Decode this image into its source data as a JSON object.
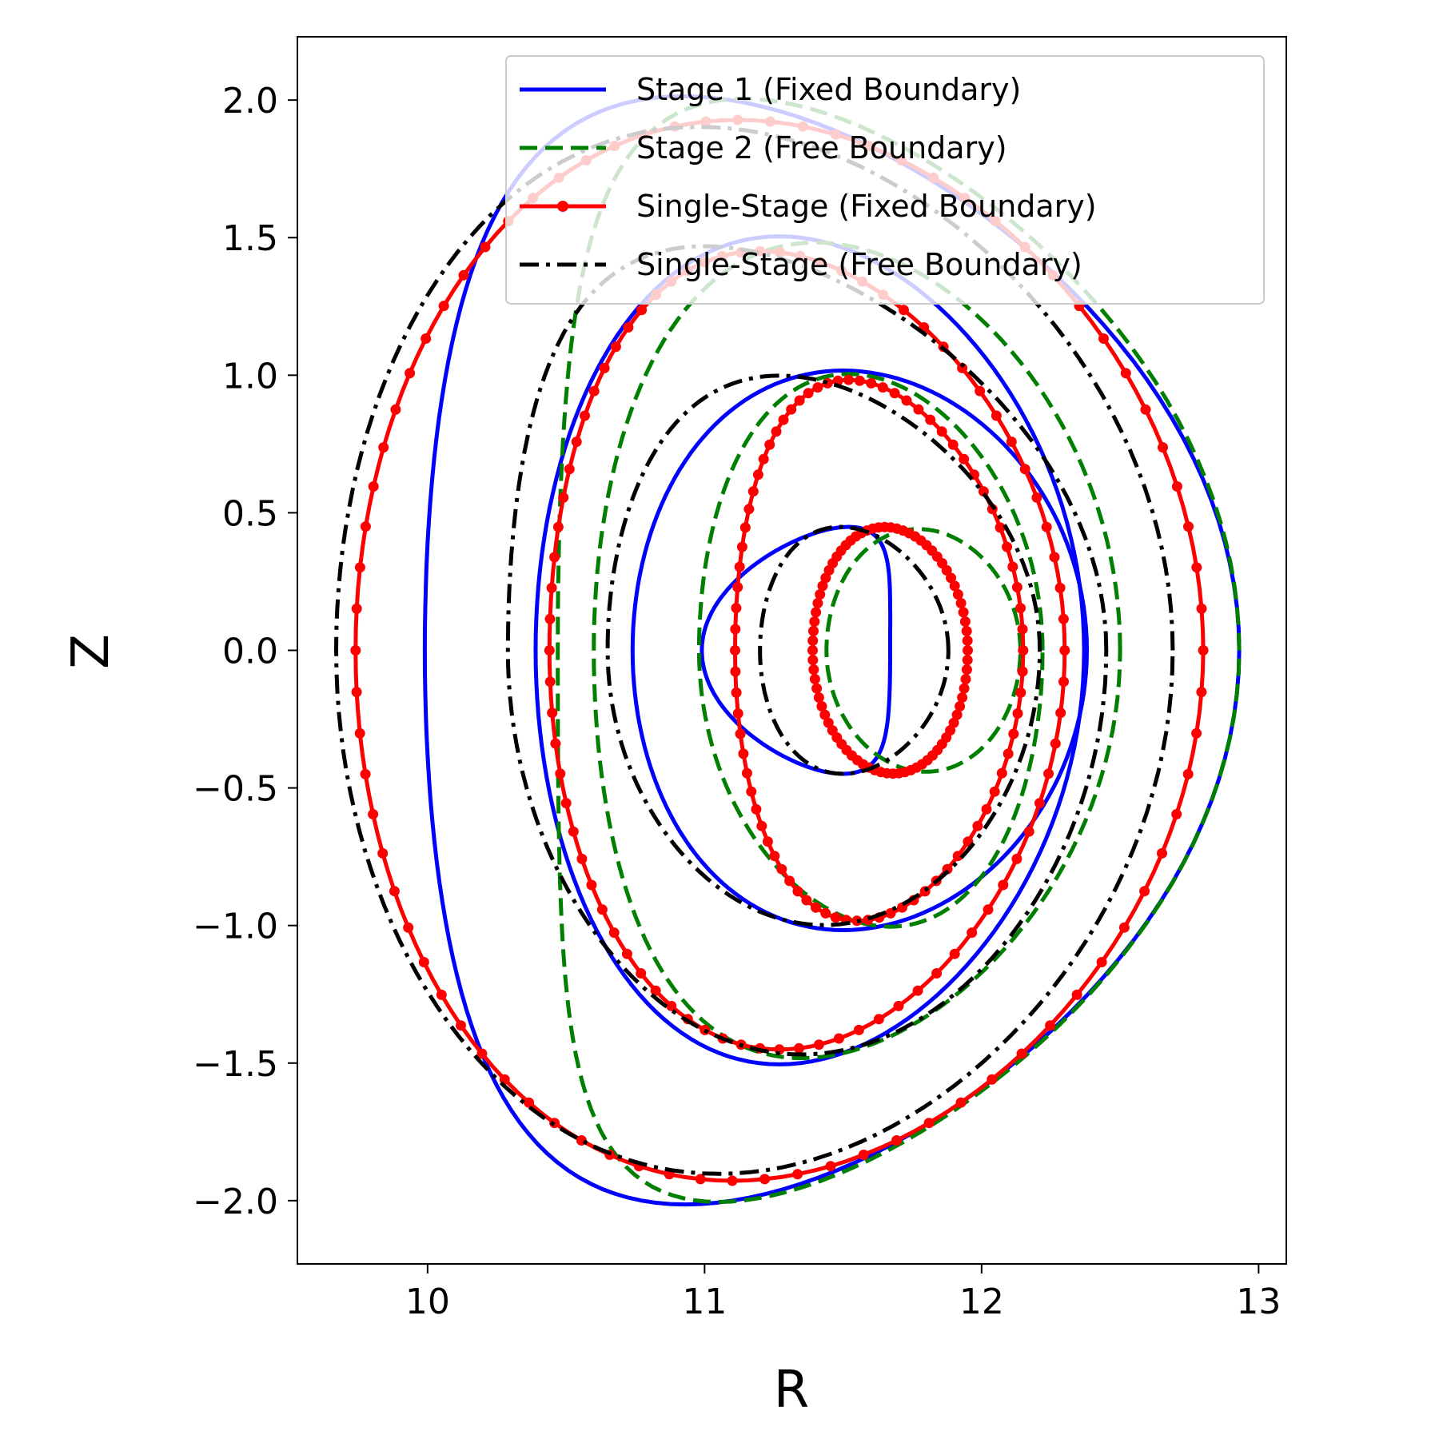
{
  "chart_data": {
    "type": "line",
    "title": "",
    "xlabel": "R",
    "ylabel": "Z",
    "xlim": [
      9.53,
      13.1
    ],
    "ylim": [
      -2.23,
      2.23
    ],
    "xticks": [
      10,
      11,
      12,
      13
    ],
    "yticks": [
      2.0,
      1.5,
      1.0,
      0.5,
      0.0,
      -0.5,
      -1.0,
      -1.5,
      -2.0
    ],
    "xtick_labels": [
      "10",
      "11",
      "12",
      "13"
    ],
    "ytick_labels": [
      "2.0",
      "1.5",
      "1.0",
      "0.5",
      "0.0",
      "−0.5",
      "−1.0",
      "−1.5",
      "−2.0"
    ],
    "grid": false,
    "legend_position": "top-right",
    "series": [
      {
        "name": "Stage 1 (Fixed Boundary)",
        "color": "#0000ff",
        "linestyle": "solid",
        "marker": "none",
        "surfaces": [
          {
            "R0": 11.33,
            "Z0": 0.0,
            "a": 0.34,
            "kappa": 1.32,
            "delta": 0.28,
            "Rtop": 11.52,
            "Rbot": 11.5
          },
          {
            "R0": 11.56,
            "Z0": 0.0,
            "a": 0.82,
            "kappa": 1.24,
            "delta": 0.09,
            "Rtop": 11.5,
            "Rbot": 11.5
          },
          {
            "R0": 11.38,
            "Z0": 0.0,
            "a": 0.99,
            "kappa": 1.52,
            "delta": 0.25,
            "Rtop": 11.27,
            "Rbot": 11.27
          },
          {
            "R0": 11.46,
            "Z0": 0.0,
            "a": 1.47,
            "kappa": 1.37,
            "delta": 0.32,
            "Rtop": 10.92,
            "Rbot": 10.93
          }
        ]
      },
      {
        "name": "Stage 2 (Free Boundary)",
        "color": "#007f00",
        "linestyle": "dashed",
        "marker": "none",
        "surfaces": [
          {
            "R0": 11.79,
            "Z0": 0.0,
            "a": 0.35,
            "kappa": 1.26,
            "delta": 0.19,
            "Rtop": 11.77,
            "Rbot": 11.8
          },
          {
            "R0": 11.6,
            "Z0": 0.0,
            "a": 0.62,
            "kappa": 1.62,
            "delta": 0.16,
            "Rtop": 11.52,
            "Rbot": 11.67
          },
          {
            "R0": 11.55,
            "Z0": 0.0,
            "a": 0.95,
            "kappa": 1.56,
            "delta": 0.2,
            "Rtop": 11.4,
            "Rbot": 11.35
          },
          {
            "R0": 11.7,
            "Z0": 0.0,
            "a": 1.23,
            "kappa": 1.63,
            "delta": 0.32,
            "Rtop": 11.14,
            "Rbot": 11.05
          }
        ]
      },
      {
        "name": "Single-Stage (Fixed Boundary)",
        "color": "#ff0000",
        "linestyle": "solid",
        "marker": "circle",
        "surfaces": [
          {
            "R0": 11.67,
            "Z0": 0.0,
            "a": 0.28,
            "kappa": 1.6,
            "delta": 0.1,
            "Rtop": 11.65,
            "Rbot": 11.68
          },
          {
            "R0": 11.63,
            "Z0": 0.0,
            "a": 0.52,
            "kappa": 1.89,
            "delta": 0.26,
            "Rtop": 11.52,
            "Rbot": 11.55
          },
          {
            "R0": 11.37,
            "Z0": 0.0,
            "a": 0.93,
            "kappa": 1.56,
            "delta": 0.27,
            "Rtop": 11.2,
            "Rbot": 11.27
          },
          {
            "R0": 11.27,
            "Z0": 0.0,
            "a": 1.53,
            "kappa": 1.26,
            "delta": 0.26,
            "Rtop": 11.12,
            "Rbot": 11.1
          }
        ]
      },
      {
        "name": "Single-Stage (Free Boundary)",
        "color": "#000000",
        "linestyle": "dashdot",
        "marker": "none",
        "surfaces": [
          {
            "R0": 11.54,
            "Z0": 0.0,
            "a": 0.34,
            "kappa": 1.32,
            "delta": 0.28,
            "Rtop": 11.49,
            "Rbot": 11.5
          },
          {
            "R0": 11.43,
            "Z0": 0.0,
            "a": 0.78,
            "kappa": 1.28,
            "delta": 0.31,
            "Rtop": 11.27,
            "Rbot": 11.43
          },
          {
            "R0": 11.37,
            "Z0": 0.0,
            "a": 1.08,
            "kappa": 1.36,
            "delta": 0.31,
            "Rtop": 11.0,
            "Rbot": 11.35
          },
          {
            "R0": 11.18,
            "Z0": 0.0,
            "a": 1.51,
            "kappa": 1.26,
            "delta": 0.3,
            "Rtop": 10.98,
            "Rbot": 11.05
          }
        ]
      }
    ]
  }
}
